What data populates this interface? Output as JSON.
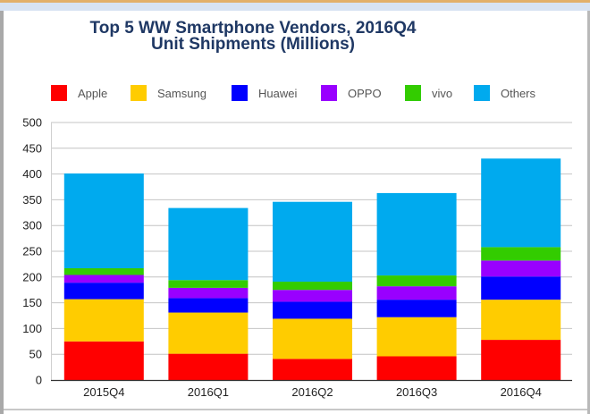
{
  "chart_data": {
    "type": "bar",
    "stacked": true,
    "title": "Top 5 WW Smartphone Vendors, 2016Q4",
    "subtitle": "Unit Shipments (Millions)",
    "xlabel": "",
    "ylabel": "",
    "ylim": [
      0,
      500
    ],
    "yticks": [
      0,
      50,
      100,
      150,
      200,
      250,
      300,
      350,
      400,
      450,
      500
    ],
    "grid": true,
    "legend_position": "top",
    "categories": [
      "2015Q4",
      "2016Q1",
      "2016Q2",
      "2016Q3",
      "2016Q4"
    ],
    "series": [
      {
        "name": "Apple",
        "color": "#ff0000",
        "values": [
          75,
          51,
          41,
          46,
          78
        ]
      },
      {
        "name": "Samsung",
        "color": "#ffcc00",
        "values": [
          82,
          80,
          78,
          76,
          78
        ]
      },
      {
        "name": "Huawei",
        "color": "#0000ff",
        "values": [
          32,
          28,
          33,
          34,
          45
        ]
      },
      {
        "name": "OPPO",
        "color": "#9900ff",
        "values": [
          15,
          20,
          23,
          26,
          31
        ]
      },
      {
        "name": "vivo",
        "color": "#33cc00",
        "values": [
          13,
          15,
          16,
          21,
          26
        ]
      },
      {
        "name": "Others",
        "color": "#00aaee",
        "values": [
          184,
          140,
          155,
          160,
          172
        ]
      }
    ]
  }
}
